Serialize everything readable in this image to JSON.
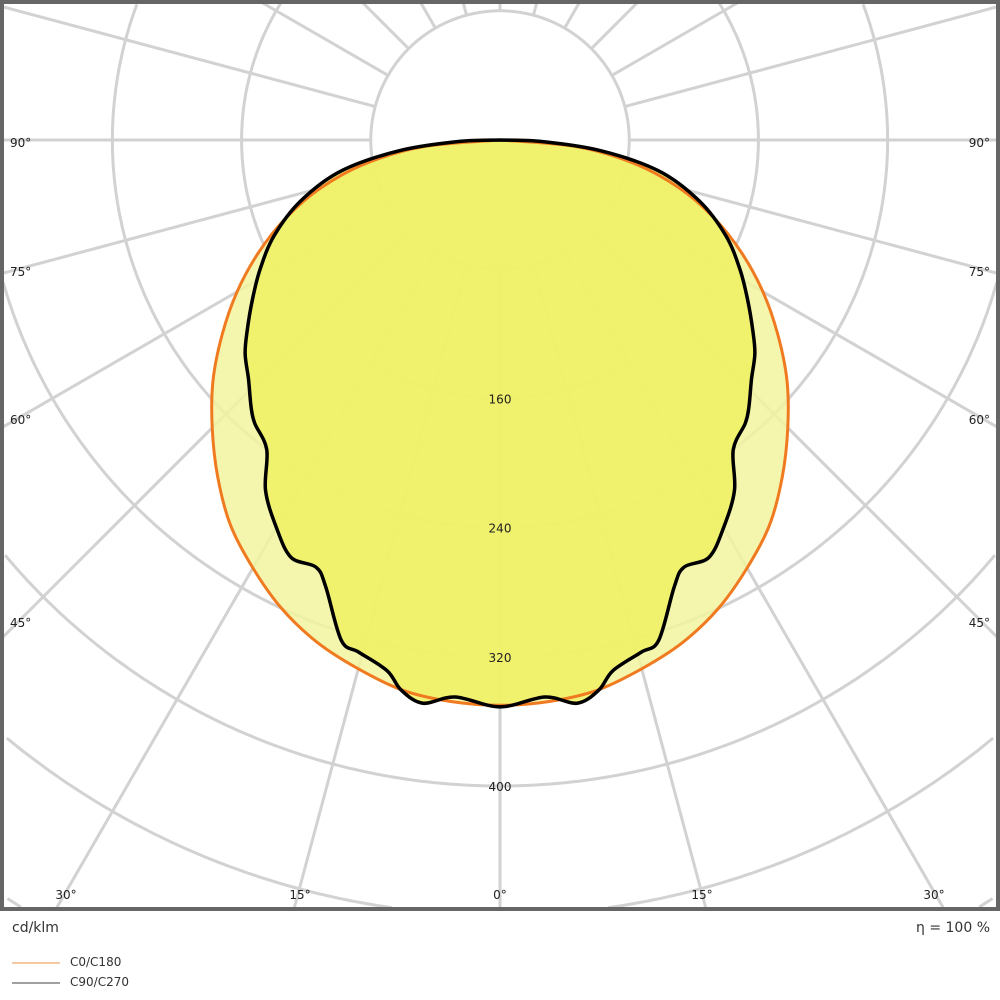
{
  "chart_data": {
    "type": "polar",
    "unit_label": "cd/klm",
    "efficiency_label": "η = 100 %",
    "radial_ticks": [
      80,
      160,
      240,
      320,
      400,
      480,
      560,
      640
    ],
    "radial_tick_labels": [
      "160",
      "240",
      "320",
      "400"
    ],
    "angle_labels": {
      "sides": [
        "90°",
        "75°",
        "60°",
        "45°"
      ],
      "bottom": [
        "30°",
        "15°",
        "0°",
        "15°",
        "30°"
      ]
    },
    "grid": true,
    "legend_placement": "bottom-left",
    "series": [
      {
        "name": "C0/C180",
        "color": "#f07a20",
        "fill": "#f3f5a0",
        "legend_color": "#f7c9a3",
        "angles": [
          0,
          5,
          10,
          15,
          20,
          25,
          30,
          35,
          40,
          45,
          50,
          55,
          60,
          65,
          70,
          75,
          80,
          85,
          90
        ],
        "values": [
          350,
          349,
          346,
          339,
          331,
          320,
          306,
          291,
          272,
          252,
          232,
          210,
          188,
          165,
          141,
          115,
          85,
          48,
          0
        ]
      },
      {
        "name": "C90/C270",
        "color": "#000000",
        "fill": "#eef060",
        "legend_color": "#a0a0a0",
        "angles": [
          0,
          4.6,
          7.8,
          10.2,
          12,
          15.4,
          17.6,
          21.3,
          23.3,
          26.6,
          30,
          33.8,
          37,
          40.9,
          43,
          46.4,
          50,
          53,
          57,
          61.6,
          67,
          73,
          79,
          84,
          88,
          90
        ],
        "values": [
          351,
          346,
          352,
          346,
          336,
          329,
          325,
          297,
          288,
          289,
          277,
          261,
          240,
          232,
          226,
          215,
          206,
          196,
          183,
          169,
          152,
          129,
          100,
          62,
          25,
          0
        ]
      }
    ]
  }
}
